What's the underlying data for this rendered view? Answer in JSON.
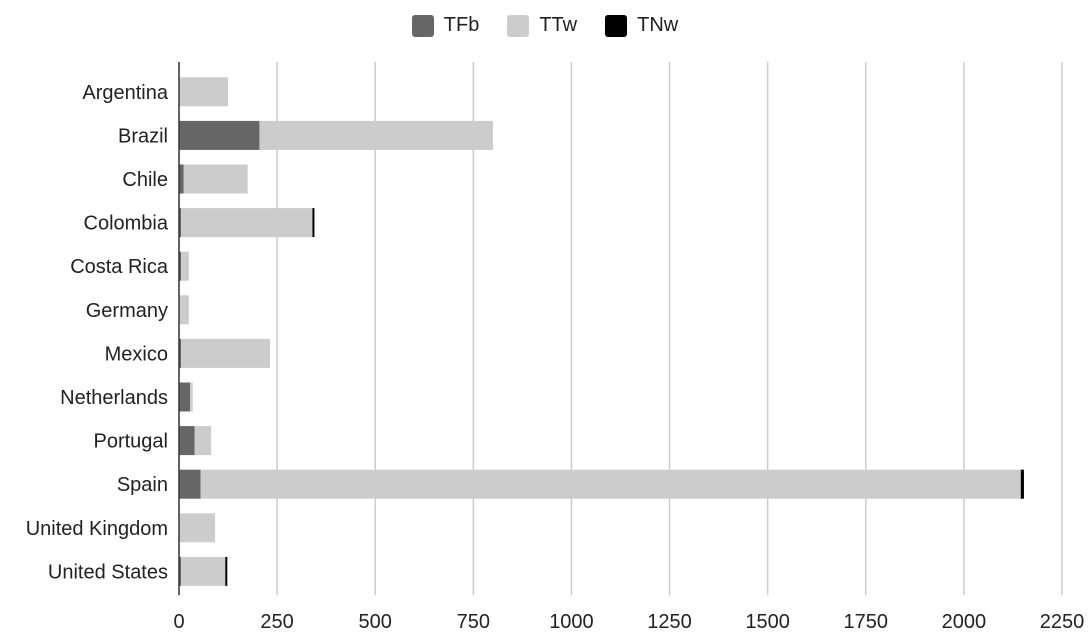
{
  "chart_data": {
    "type": "bar",
    "orientation": "horizontal",
    "stacked": true,
    "categories": [
      "Argentina",
      "Brazil",
      "Chile",
      "Colombia",
      "Costa Rica",
      "Germany",
      "Mexico",
      "Netherlands",
      "Portugal",
      "Spain",
      "United Kingdom",
      "United States"
    ],
    "series": [
      {
        "name": "TFb",
        "color": "#666666",
        "values": [
          0,
          205,
          12,
          5,
          5,
          0,
          5,
          28,
          40,
          55,
          0,
          5
        ]
      },
      {
        "name": "TTw",
        "color": "#cccccc",
        "values": [
          125,
          595,
          163,
          335,
          20,
          25,
          227,
          7,
          42,
          2090,
          92,
          113
        ]
      },
      {
        "name": "TNw",
        "color": "#000000",
        "values": [
          0,
          0,
          0,
          3,
          0,
          0,
          0,
          0,
          0,
          8,
          0,
          3
        ]
      }
    ],
    "xlim": [
      0,
      2250
    ],
    "xticks": [
      "0",
      "250",
      "500",
      "750",
      "1000",
      "1250",
      "1500",
      "1750",
      "2000",
      "2250"
    ],
    "grid": "vertical",
    "legend_position": "top"
  }
}
